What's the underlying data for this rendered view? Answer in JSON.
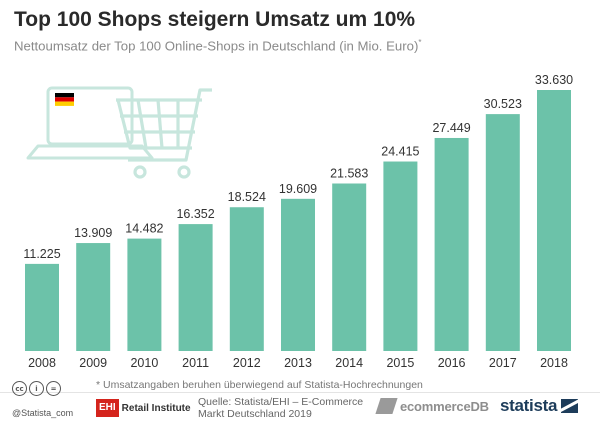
{
  "header": {
    "title": "Top 100 Shops steigern Umsatz um 10%",
    "subtitle": "Nettoumsatz der Top 100 Online-Shops in Deutschland (in Mio. Euro)",
    "subtitle_mark": "*"
  },
  "chart_data": {
    "type": "bar",
    "title": "Top 100 Shops steigern Umsatz um 10%",
    "subtitle": "Nettoumsatz der Top 100 Online-Shops in Deutschland (in Mio. Euro)",
    "categories": [
      "2008",
      "2009",
      "2010",
      "2011",
      "2012",
      "2013",
      "2014",
      "2015",
      "2016",
      "2017",
      "2018"
    ],
    "values": [
      11225,
      13909,
      14482,
      16352,
      18524,
      19609,
      21583,
      24415,
      27449,
      30523,
      33630
    ],
    "value_labels": [
      "11.225",
      "13.909",
      "14.482",
      "16.352",
      "18.524",
      "19.609",
      "21.583",
      "24.415",
      "27.449",
      "30.523",
      "33.630"
    ],
    "ylim": [
      0,
      33630
    ],
    "grid": false,
    "legend": "none",
    "bar_color": "#6cc2a9"
  },
  "footer": {
    "footnote": "* Umsatzangaben beruhen überwiegend auf Statista-Hochrechnungen",
    "handle": "@Statista_com",
    "cc_icons": [
      "cc",
      "i",
      "="
    ],
    "ehi_box": "EHI",
    "ehi_text": "Retail Institute",
    "source_line1": "Quelle: Statista/EHI – E-Commerce",
    "source_line2": "Markt Deutschland 2019",
    "ecommercedb": "ecommerceDB",
    "statista": "statista"
  },
  "colors": {
    "bar": "#6cc2a9",
    "illustration": "#c7e6dd",
    "statista_navy": "#1d3c5a",
    "ehi_red": "#d4241c"
  }
}
